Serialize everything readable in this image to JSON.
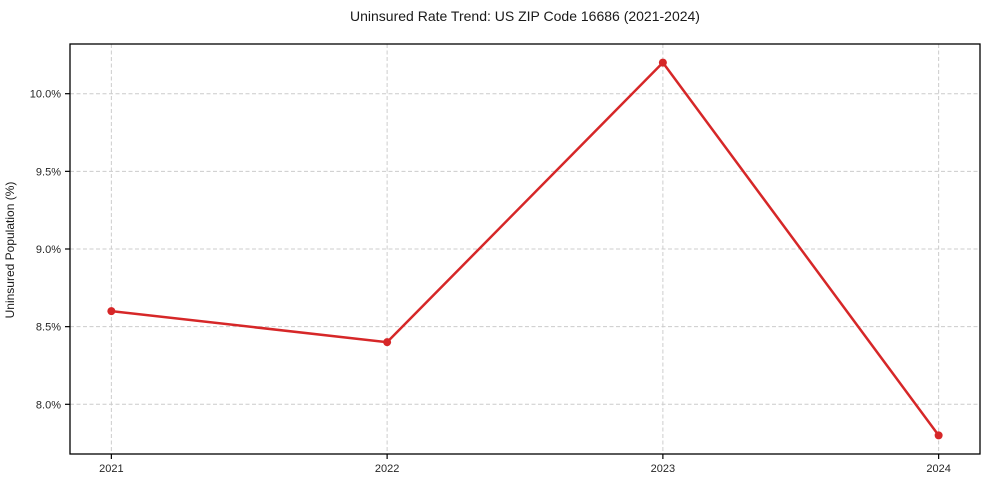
{
  "chart_data": {
    "type": "line",
    "title": "Uninsured Rate Trend: US ZIP Code 16686 (2021-2024)",
    "xlabel": "",
    "ylabel": "Uninsured Population (%)",
    "x": [
      2021,
      2022,
      2023,
      2024
    ],
    "x_tick_labels": [
      "2021",
      "2022",
      "2023",
      "2024"
    ],
    "series": [
      {
        "name": "Uninsured rate",
        "values": [
          8.6,
          8.4,
          10.2,
          7.8
        ]
      }
    ],
    "y_ticks": [
      8.0,
      8.5,
      9.0,
      9.5,
      10.0
    ],
    "y_tick_labels": [
      "8.0%",
      "8.5%",
      "9.0%",
      "9.5%",
      "10.0%"
    ],
    "ylim": [
      7.68,
      10.32
    ],
    "xlim": [
      2020.85,
      2024.15
    ],
    "grid": "dashed, horizontal and vertical",
    "legend": "none",
    "marker": "circle"
  },
  "colors": {
    "line": "#d62728",
    "grid": "#cccccc",
    "border": "#000000",
    "text": "#1a1a1a",
    "background": "#ffffff"
  }
}
